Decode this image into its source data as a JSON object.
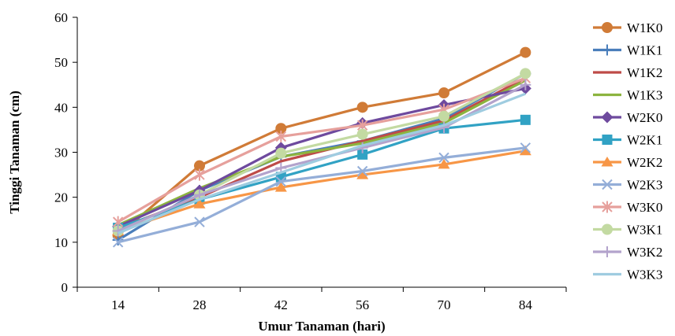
{
  "chart_data": {
    "type": "line",
    "xlabel": "Umur Tanaman (hari)",
    "ylabel": "Tinggi Tanaman (cm)",
    "categories": [
      "14",
      "28",
      "42",
      "56",
      "70",
      "84"
    ],
    "ylim": [
      0,
      60
    ],
    "yticks": [
      "0",
      "10",
      "20",
      "30",
      "40",
      "50",
      "60"
    ],
    "grid": false,
    "legend_position": "right",
    "series": [
      {
        "name": "W1K0",
        "color": "#D07B37",
        "marker": "circle",
        "values": [
          11.5,
          27.0,
          35.3,
          40.0,
          43.2,
          52.2
        ]
      },
      {
        "name": "W1K1",
        "color": "#4A7EBB",
        "marker": "plus",
        "values": [
          10.5,
          21.5,
          29.0,
          32.5,
          37.5,
          47.5
        ]
      },
      {
        "name": "W1K2",
        "color": "#BE4B48",
        "marker": "none",
        "values": [
          13.0,
          20.0,
          28.0,
          32.5,
          37.0,
          46.5
        ]
      },
      {
        "name": "W1K3",
        "color": "#8CB43F",
        "marker": "none",
        "values": [
          13.8,
          22.0,
          29.0,
          32.0,
          36.5,
          46.0
        ]
      },
      {
        "name": "W2K0",
        "color": "#6E4A9E",
        "marker": "diamond",
        "values": [
          13.5,
          21.5,
          31.0,
          36.5,
          40.5,
          44.2
        ]
      },
      {
        "name": "W2K1",
        "color": "#31A2C4",
        "marker": "square",
        "values": [
          13.2,
          19.5,
          24.5,
          29.5,
          35.3,
          37.2
        ]
      },
      {
        "name": "W2K2",
        "color": "#F79646",
        "marker": "triangle",
        "values": [
          12.5,
          18.5,
          22.2,
          25.0,
          27.3,
          30.3
        ]
      },
      {
        "name": "W2K3",
        "color": "#94AED8",
        "marker": "x",
        "values": [
          10.0,
          14.5,
          23.5,
          25.8,
          28.8,
          31.0
        ]
      },
      {
        "name": "W3K0",
        "color": "#E6A09C",
        "marker": "asterisk",
        "values": [
          14.5,
          25.0,
          33.5,
          36.0,
          39.5,
          46.5
        ]
      },
      {
        "name": "W3K1",
        "color": "#C3DAA2",
        "marker": "circle",
        "values": [
          12.5,
          20.5,
          29.8,
          34.0,
          38.0,
          47.5
        ]
      },
      {
        "name": "W3K2",
        "color": "#B3A3CC",
        "marker": "plus",
        "values": [
          12.5,
          20.5,
          26.5,
          31.0,
          35.5,
          45.0
        ]
      },
      {
        "name": "W3K3",
        "color": "#9FCCE0",
        "marker": "none",
        "values": [
          12.0,
          19.5,
          25.5,
          31.5,
          36.0,
          43.0
        ]
      }
    ]
  }
}
